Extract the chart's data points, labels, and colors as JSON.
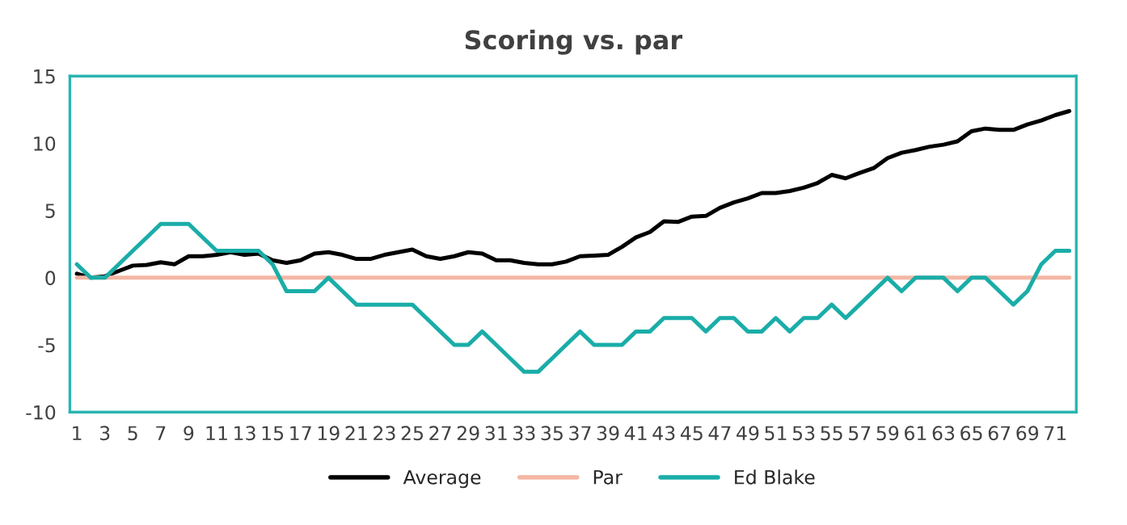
{
  "chart_data": {
    "type": "line",
    "title": "Scoring vs. par",
    "x": [
      1,
      2,
      3,
      4,
      5,
      6,
      7,
      8,
      9,
      10,
      11,
      12,
      13,
      14,
      15,
      16,
      17,
      18,
      19,
      20,
      21,
      22,
      23,
      24,
      25,
      26,
      27,
      28,
      29,
      30,
      31,
      32,
      33,
      34,
      35,
      36,
      37,
      38,
      39,
      40,
      41,
      42,
      43,
      44,
      45,
      46,
      47,
      48,
      49,
      50,
      51,
      52,
      53,
      54,
      55,
      56,
      57,
      58,
      59,
      60,
      61,
      62,
      63,
      64,
      65,
      66,
      67,
      68,
      69,
      70,
      71,
      72
    ],
    "xlim": [
      0.5,
      72.5
    ],
    "xticks": [
      1,
      3,
      5,
      7,
      9,
      11,
      13,
      15,
      17,
      19,
      21,
      23,
      25,
      27,
      29,
      31,
      33,
      35,
      37,
      39,
      41,
      43,
      45,
      47,
      49,
      51,
      53,
      55,
      57,
      59,
      61,
      63,
      65,
      67,
      69,
      71
    ],
    "ylim": [
      -10,
      15
    ],
    "yticks": [
      -10,
      -5,
      0,
      5,
      10,
      15
    ],
    "grid": false,
    "legend": "bottom",
    "marker": "none",
    "line_style": "solid",
    "series": [
      {
        "name": "Average",
        "color": "#000000",
        "values": [
          0.3,
          0,
          0.1,
          0.5,
          0.9,
          0.95,
          1.15,
          1.0,
          1.6,
          1.6,
          1.7,
          1.9,
          1.7,
          1.8,
          1.3,
          1.1,
          1.3,
          1.8,
          1.9,
          1.7,
          1.4,
          1.4,
          1.7,
          1.9,
          2.1,
          1.6,
          1.4,
          1.6,
          1.9,
          1.8,
          1.3,
          1.3,
          1.1,
          1.0,
          1.0,
          1.2,
          1.6,
          1.65,
          1.7,
          2.3,
          3.0,
          3.4,
          4.2,
          4.15,
          4.55,
          4.6,
          5.2,
          5.6,
          5.9,
          6.3,
          6.3,
          6.45,
          6.7,
          7.05,
          7.65,
          7.4,
          7.8,
          8.15,
          8.9,
          9.3,
          9.5,
          9.75,
          9.9,
          10.15,
          10.9,
          11.1,
          11.0,
          11.0,
          11.4,
          11.7,
          12.1,
          12.4
        ]
      },
      {
        "name": "Par",
        "color": "#f4b6a4",
        "values": [
          0,
          0,
          0,
          0,
          0,
          0,
          0,
          0,
          0,
          0,
          0,
          0,
          0,
          0,
          0,
          0,
          0,
          0,
          0,
          0,
          0,
          0,
          0,
          0,
          0,
          0,
          0,
          0,
          0,
          0,
          0,
          0,
          0,
          0,
          0,
          0,
          0,
          0,
          0,
          0,
          0,
          0,
          0,
          0,
          0,
          0,
          0,
          0,
          0,
          0,
          0,
          0,
          0,
          0,
          0,
          0,
          0,
          0,
          0,
          0,
          0,
          0,
          0,
          0,
          0,
          0,
          0,
          0,
          0,
          0,
          0,
          0
        ]
      },
      {
        "name": "Ed Blake",
        "color": "#1aada8",
        "values": [
          1,
          0,
          0,
          1,
          2,
          3,
          4,
          4,
          4,
          3,
          2,
          2,
          2,
          2,
          1,
          -1,
          -1,
          -1,
          0,
          -1,
          -2,
          -2,
          -2,
          -2,
          -2,
          -3,
          -4,
          -5,
          -5,
          -4,
          -5,
          -6,
          -7,
          -7,
          -6,
          -5,
          -4,
          -5,
          -5,
          -5,
          -4,
          -4,
          -3,
          -3,
          -3,
          -4,
          -3,
          -3,
          -4,
          -4,
          -3,
          -4,
          -3,
          -3,
          -2,
          -3,
          -2,
          -1,
          0,
          -1,
          0,
          0,
          0,
          -1,
          0,
          0,
          -1,
          -2,
          -1,
          1,
          2,
          2
        ]
      }
    ]
  }
}
